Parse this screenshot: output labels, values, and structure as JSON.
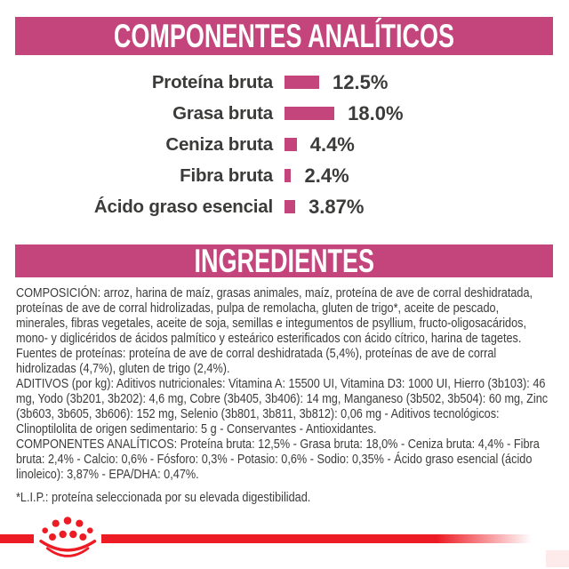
{
  "colors": {
    "pink": "#C4457C",
    "red": "#ED1C24",
    "text_dark": "#3B3B3A",
    "white": "#FFFFFF"
  },
  "banners": {
    "analytical_title": "COMPONENTES ANALÍTICOS",
    "ingredients_title": "INGREDIENTES"
  },
  "chart_data": {
    "type": "bar",
    "orientation": "horizontal",
    "title": "COMPONENTES ANALÍTICOS",
    "categories": [
      "Proteína bruta",
      "Grasa bruta",
      "Ceniza bruta",
      "Fibra bruta",
      "Ácido graso esencial"
    ],
    "values": [
      12.5,
      18.0,
      4.4,
      2.4,
      3.87
    ],
    "value_labels": [
      "12.5%",
      "18.0%",
      "4.4%",
      "2.4%",
      "3.87%"
    ],
    "unit": "%",
    "xlim": [
      0,
      20
    ],
    "bar_color": "#C4457C",
    "grid": false,
    "axes_shown": false,
    "legend": "none"
  },
  "body": {
    "composition": "COMPOSICIÓN: arroz, harina de maíz, grasas animales, maíz, proteína de ave de corral deshidratada, proteínas de ave de corral hidrolizadas, pulpa de remolacha, gluten de trigo*, aceite de pescado, minerales, fibras vegetales, aceite de soja, semillas e integumentos de psyllium, fructo-oligosacáridos, mono- y diglicéridos de ácidos palmítico y esteárico esterificados con ácido cítrico, harina de tagetes. Fuentes de proteínas: proteína de ave de corral deshidratada (5,4%), proteínas de ave de corral hidrolizadas (4,7%), gluten de trigo (2,4%).",
    "additives": "ADITIVOS (por kg): Aditivos nutricionales: Vitamina A: 15500 UI, Vitamina D3: 1000 UI, Hierro (3b103): 46 mg, Yodo (3b201, 3b202): 4,6 mg, Cobre (3b405, 3b406): 14 mg, Manganeso (3b502, 3b504): 60 mg, Zinc (3b603, 3b605, 3b606): 152 mg, Selenio (3b801, 3b811, 3b812): 0,06 mg - Aditivos tecnológicos: Clinoptilolita de origen sedimentario: 5 g - Conservantes - Antioxidantes.",
    "analytical_constituents": "COMPONENTES ANALÍTICOS: Proteína bruta: 12,5% - Grasa bruta: 18,0% - Ceniza bruta: 4,4% - Fibra bruta: 2,4% - Calcio: 0,6% - Fósforo: 0,3% - Potasio: 0,6% - Sodio: 0,35% - Ácido graso esencial (ácido linoleico): 3,87% - EPA/DHA: 0,47%.",
    "footnote": "*L.I.P.: proteína seleccionada por su elevada digestibilidad."
  },
  "footer": {
    "logo_icon": "royal-canin-crown-icon"
  }
}
